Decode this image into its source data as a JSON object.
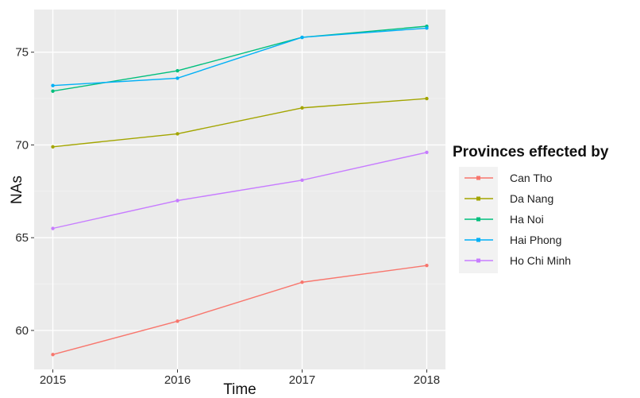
{
  "chart_data": {
    "type": "line",
    "x": [
      2015,
      2016,
      2017,
      2018
    ],
    "xlabel": "Time",
    "ylabel": "NAs",
    "yticks": [
      60,
      65,
      70,
      75
    ],
    "ylim": [
      57.9,
      77.3
    ],
    "xlim": [
      2014.85,
      2018.15
    ],
    "grid": true,
    "legend_title": "Provinces effected by",
    "legend_position": "right",
    "series": [
      {
        "name": "Can Tho",
        "color": "#F8766D",
        "values": [
          58.7,
          60.5,
          62.6,
          63.5
        ]
      },
      {
        "name": "Da Nang",
        "color": "#A3A500",
        "values": [
          69.9,
          70.6,
          72.0,
          72.5
        ]
      },
      {
        "name": "Ha Noi",
        "color": "#00BF7D",
        "values": [
          72.9,
          74.0,
          75.8,
          76.4
        ]
      },
      {
        "name": "Hai Phong",
        "color": "#00B0F6",
        "values": [
          73.2,
          73.6,
          75.8,
          76.3
        ]
      },
      {
        "name": "Ho Chi Minh",
        "color": "#C77CFF",
        "values": [
          65.5,
          67.0,
          68.1,
          69.6
        ]
      }
    ]
  }
}
